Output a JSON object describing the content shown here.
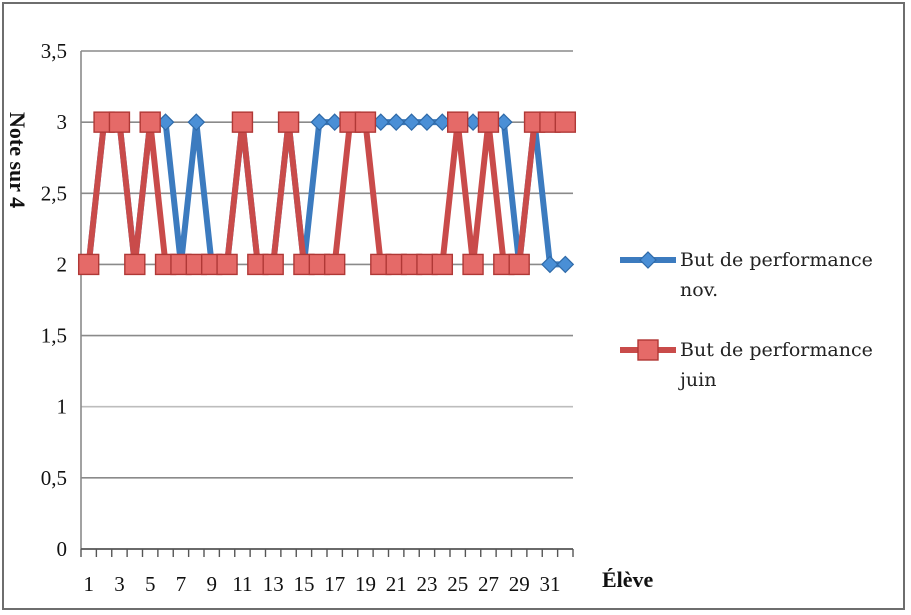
{
  "chart_data": {
    "type": "line",
    "title": "",
    "xlabel": "Élève",
    "ylabel": "Note sur 4",
    "ylim": [
      0,
      3.5
    ],
    "yticks": [
      "0",
      "0,5",
      "1",
      "1,5",
      "2",
      "2,5",
      "3",
      "3,5"
    ],
    "x": [
      1,
      2,
      3,
      4,
      5,
      6,
      7,
      8,
      9,
      10,
      11,
      12,
      13,
      14,
      15,
      16,
      17,
      18,
      19,
      20,
      21,
      22,
      23,
      24,
      25,
      26,
      27,
      28,
      29,
      30,
      31,
      32
    ],
    "xtick_labels": [
      "1",
      "3",
      "5",
      "7",
      "9",
      "11",
      "13",
      "15",
      "17",
      "19",
      "21",
      "23",
      "25",
      "27",
      "29",
      "31"
    ],
    "grid": "horizontal",
    "legend_position": "right",
    "series": [
      {
        "name": "But de performance nov.",
        "name_lines": [
          "But de performance",
          "nov."
        ],
        "color": "#3c7bbf",
        "marker": "diamond",
        "values": [
          2,
          3,
          3,
          2,
          3,
          3,
          2,
          3,
          2,
          2,
          3,
          2,
          2,
          3,
          2,
          3,
          3,
          3,
          3,
          3,
          3,
          3,
          3,
          3,
          3,
          3,
          3,
          3,
          2,
          3,
          2,
          2
        ]
      },
      {
        "name": "But de performance juin",
        "name_lines": [
          "But de performance",
          "juin"
        ],
        "color": "#c94b4a",
        "marker": "square",
        "values": [
          2,
          3,
          3,
          2,
          3,
          2,
          2,
          2,
          2,
          2,
          3,
          2,
          2,
          3,
          2,
          2,
          2,
          3,
          3,
          2,
          2,
          2,
          2,
          2,
          3,
          2,
          3,
          2,
          2,
          3,
          3,
          3
        ]
      }
    ]
  }
}
